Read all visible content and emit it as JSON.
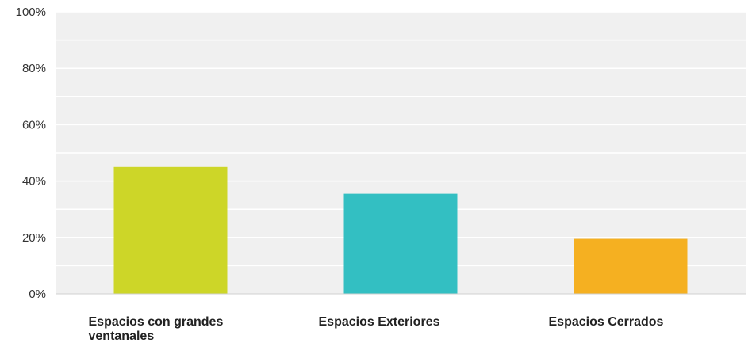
{
  "chart_data": {
    "type": "bar",
    "title": "",
    "xlabel": "",
    "ylabel": "",
    "categories": [
      [
        "Espacios con grandes",
        "ventanales"
      ],
      [
        "Espacios Exteriores"
      ],
      [
        "Espacios Cerrados"
      ]
    ],
    "values": [
      45,
      35.5,
      19.5
    ],
    "colors": [
      "#cdd628",
      "#33bfc2",
      "#f5b021"
    ],
    "ylim": [
      0,
      100
    ],
    "yticks": [
      0,
      20,
      40,
      60,
      80,
      100
    ],
    "ytick_format": "{v}%",
    "grid": true,
    "plot_background": "#f0f0f0",
    "legend": "none"
  }
}
